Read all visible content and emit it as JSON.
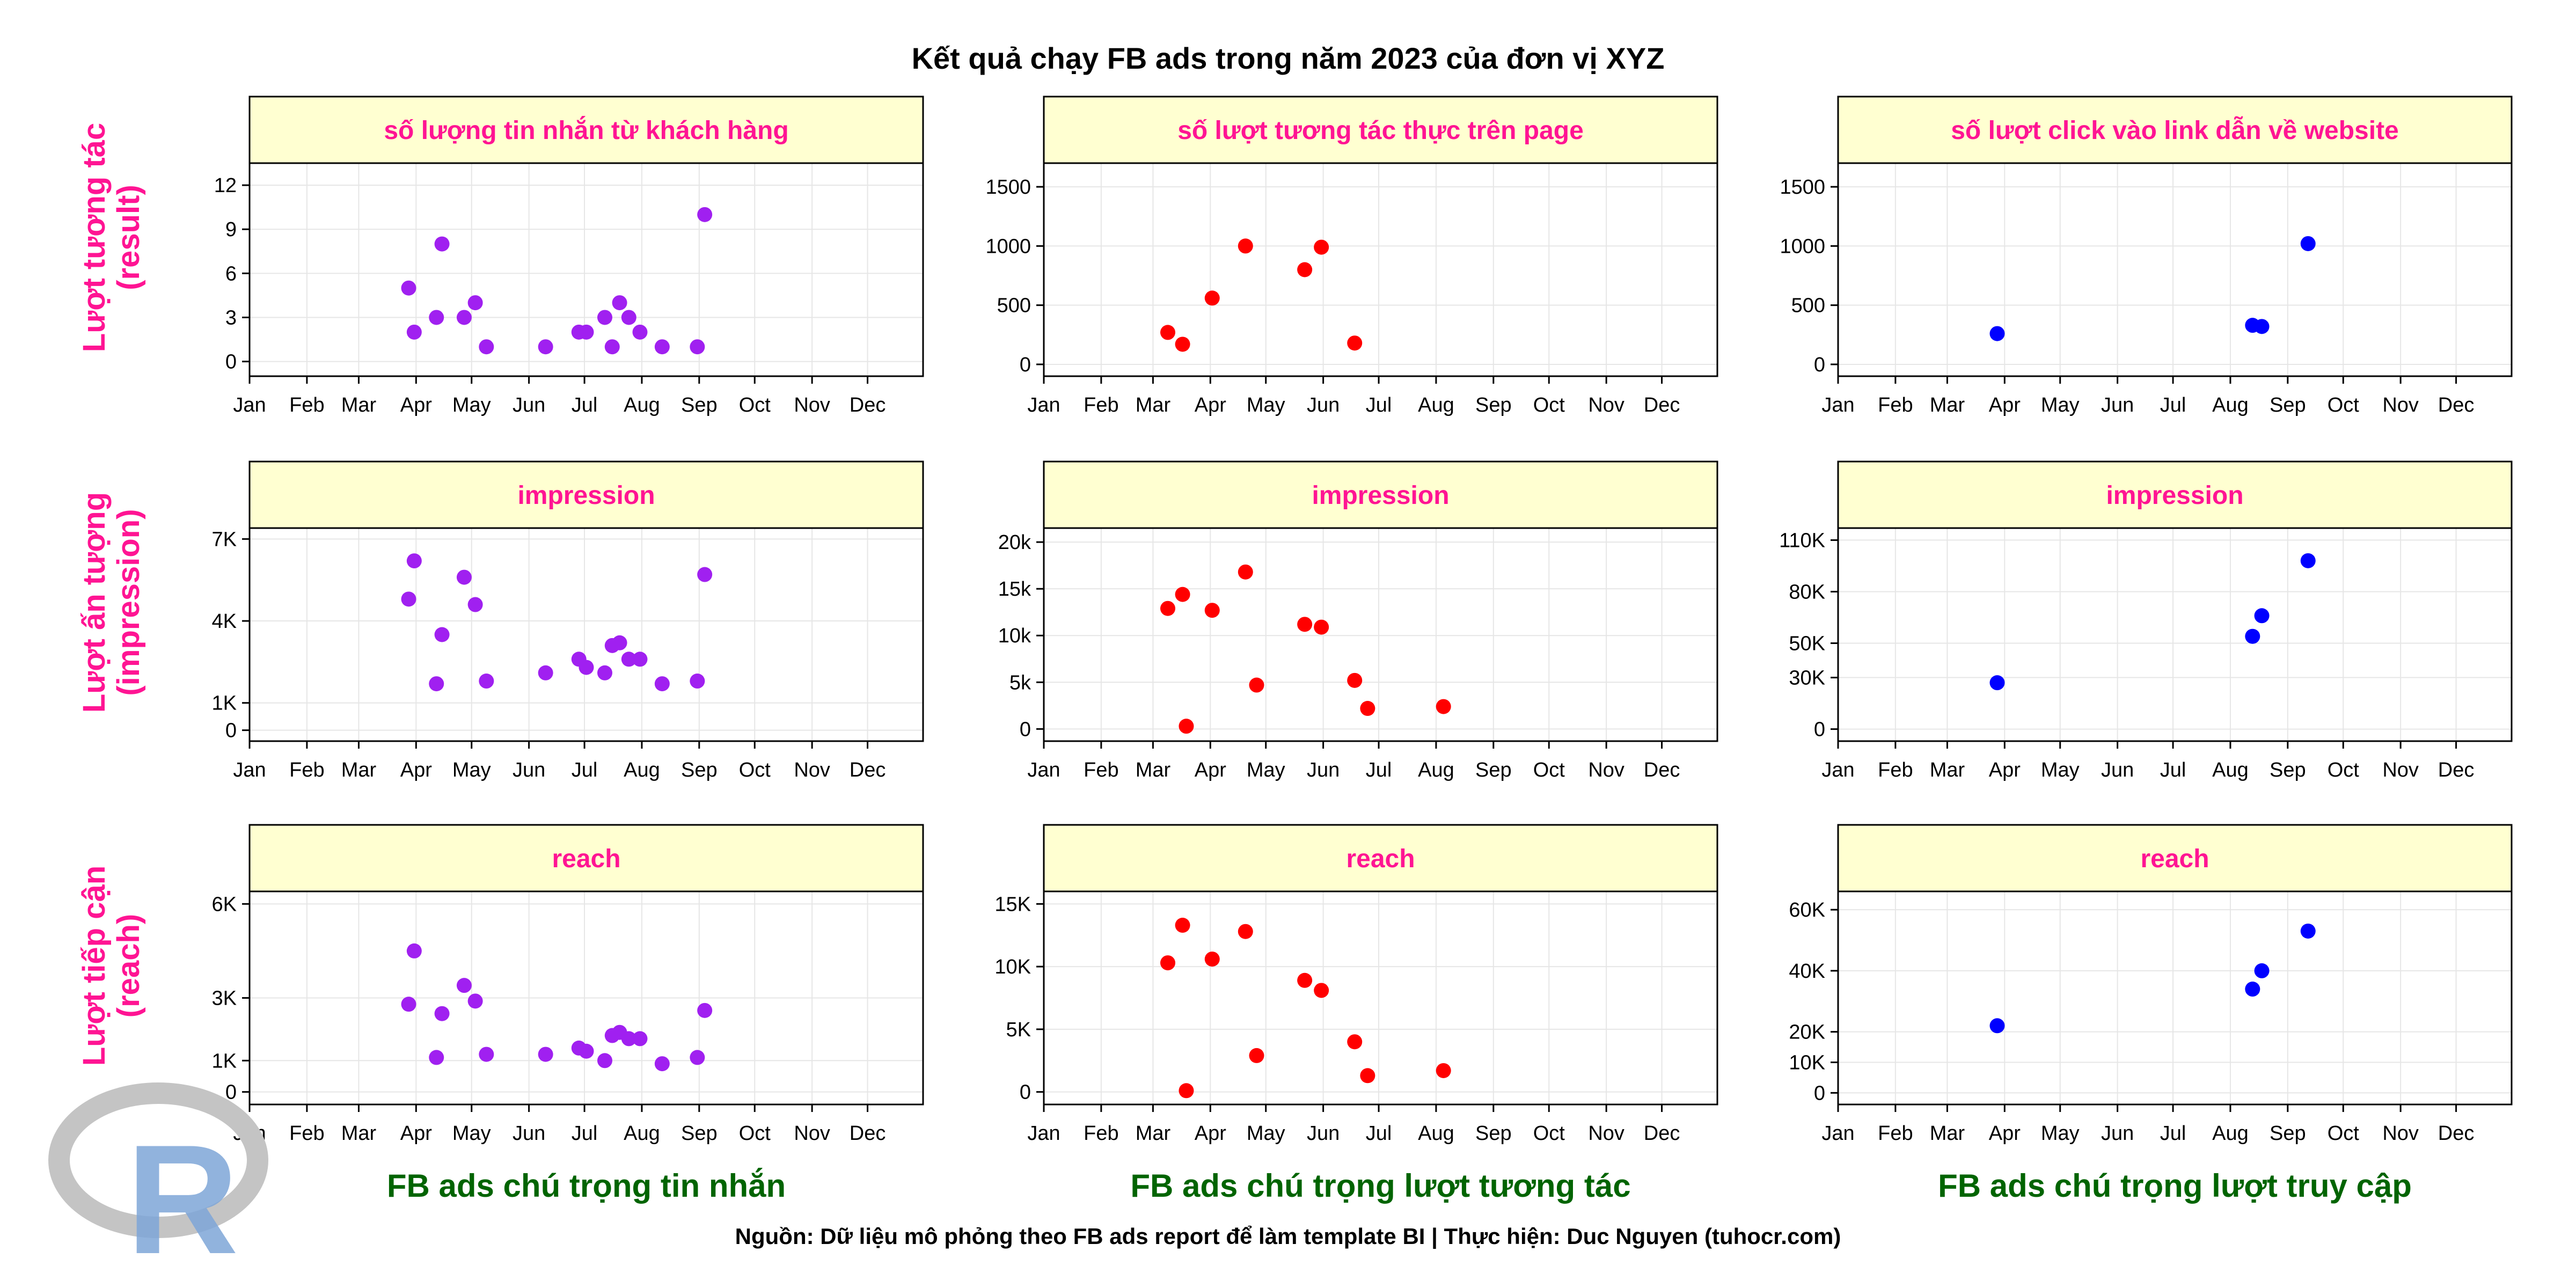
{
  "title": "Kết quả chạy FB ads trong năm 2023 của đơn vị XYZ",
  "caption": "Nguồn: Dữ liệu mô phỏng theo FB ads report để làm template BI | Thực hiện: Duc Nguyen (tuhocr.com)",
  "logo": "R",
  "colors": {
    "strip_bg": "#FFFFD1",
    "strip_text": "#FF1493",
    "row_label": "#FF1493",
    "col_label": "#006400",
    "grid": "#E6E6E6",
    "series": [
      "#A020F0",
      "#FF0000",
      "#0000FF"
    ]
  },
  "row_labels": [
    [
      "Lượt tương tác",
      "(result)"
    ],
    [
      "Lượt ấn tượng",
      "(impression)"
    ],
    [
      "Lượt tiếp cận",
      "(reach)"
    ]
  ],
  "column_labels": [
    "FB ads chú trọng tin nhắn",
    "FB ads chú trọng lượt tương tác",
    "FB ads chú trọng lượt truy cập"
  ],
  "chart_data": [
    {
      "type": "scatter",
      "title": "số lượng tin nhắn từ khách hàng",
      "x_ticks": [
        "Jan",
        "Feb",
        "Mar",
        "Apr",
        "May",
        "Jun",
        "Jul",
        "Aug",
        "Sep",
        "Oct",
        "Nov",
        "Dec"
      ],
      "xlim": [
        "2023-01-01",
        "2023-12-31"
      ],
      "ylim": [
        -1,
        13.5
      ],
      "y_ticks": [
        0,
        3,
        6,
        9,
        12
      ],
      "y_tick_labels": [
        "0",
        "3",
        "6",
        "9",
        "12"
      ],
      "grid": true,
      "points": [
        {
          "x": "2023-03-28",
          "y": 5
        },
        {
          "x": "2023-03-31",
          "y": 2
        },
        {
          "x": "2023-04-12",
          "y": 3
        },
        {
          "x": "2023-04-15",
          "y": 8
        },
        {
          "x": "2023-04-27",
          "y": 3
        },
        {
          "x": "2023-05-03",
          "y": 4
        },
        {
          "x": "2023-05-09",
          "y": 1
        },
        {
          "x": "2023-06-10",
          "y": 1
        },
        {
          "x": "2023-06-28",
          "y": 2
        },
        {
          "x": "2023-07-02",
          "y": 2
        },
        {
          "x": "2023-07-12",
          "y": 3
        },
        {
          "x": "2023-07-16",
          "y": 1
        },
        {
          "x": "2023-07-20",
          "y": 4
        },
        {
          "x": "2023-07-25",
          "y": 3
        },
        {
          "x": "2023-07-31",
          "y": 2
        },
        {
          "x": "2023-08-12",
          "y": 1
        },
        {
          "x": "2023-08-31",
          "y": 1
        },
        {
          "x": "2023-09-04",
          "y": 10
        }
      ]
    },
    {
      "type": "scatter",
      "title": "số lượt tương tác thực trên page",
      "x_ticks": [
        "Jan",
        "Feb",
        "Mar",
        "Apr",
        "May",
        "Jun",
        "Jul",
        "Aug",
        "Sep",
        "Oct",
        "Nov",
        "Dec"
      ],
      "xlim": [
        "2023-01-01",
        "2023-12-31"
      ],
      "ylim": [
        -100,
        1700
      ],
      "y_ticks": [
        0,
        500,
        1000,
        1500
      ],
      "y_tick_labels": [
        "0",
        "500",
        "1000",
        "1500"
      ],
      "grid": true,
      "points": [
        {
          "x": "2023-03-09",
          "y": 270
        },
        {
          "x": "2023-03-17",
          "y": 170
        },
        {
          "x": "2023-04-02",
          "y": 560
        },
        {
          "x": "2023-04-20",
          "y": 1000
        },
        {
          "x": "2023-05-22",
          "y": 800
        },
        {
          "x": "2023-05-31",
          "y": 990
        },
        {
          "x": "2023-06-18",
          "y": 180
        }
      ]
    },
    {
      "type": "scatter",
      "title": "số lượt click vào link dẫn về website",
      "x_ticks": [
        "Jan",
        "Feb",
        "Mar",
        "Apr",
        "May",
        "Jun",
        "Jul",
        "Aug",
        "Sep",
        "Oct",
        "Nov",
        "Dec"
      ],
      "xlim": [
        "2023-01-01",
        "2023-12-31"
      ],
      "ylim": [
        -100,
        1700
      ],
      "y_ticks": [
        0,
        500,
        1000,
        1500
      ],
      "y_tick_labels": [
        "0",
        "500",
        "1000",
        "1500"
      ],
      "grid": true,
      "points": [
        {
          "x": "2023-03-28",
          "y": 260
        },
        {
          "x": "2023-08-13",
          "y": 330
        },
        {
          "x": "2023-08-18",
          "y": 320
        },
        {
          "x": "2023-09-12",
          "y": 1020
        }
      ]
    },
    {
      "type": "scatter",
      "title": "impression",
      "x_ticks": [
        "Jan",
        "Feb",
        "Mar",
        "Apr",
        "May",
        "Jun",
        "Jul",
        "Aug",
        "Sep",
        "Oct",
        "Nov",
        "Dec"
      ],
      "xlim": [
        "2023-01-01",
        "2023-12-31"
      ],
      "ylim": [
        -400,
        7400
      ],
      "y_ticks": [
        0,
        1000,
        4000,
        7000
      ],
      "y_tick_labels": [
        "0",
        "1K",
        "4K",
        "7K"
      ],
      "grid": true,
      "points": [
        {
          "x": "2023-03-28",
          "y": 4800
        },
        {
          "x": "2023-03-31",
          "y": 6200
        },
        {
          "x": "2023-04-12",
          "y": 1700
        },
        {
          "x": "2023-04-15",
          "y": 3500
        },
        {
          "x": "2023-04-27",
          "y": 5600
        },
        {
          "x": "2023-05-03",
          "y": 4600
        },
        {
          "x": "2023-05-09",
          "y": 1800
        },
        {
          "x": "2023-06-10",
          "y": 2100
        },
        {
          "x": "2023-06-28",
          "y": 2600
        },
        {
          "x": "2023-07-02",
          "y": 2300
        },
        {
          "x": "2023-07-12",
          "y": 2100
        },
        {
          "x": "2023-07-16",
          "y": 3100
        },
        {
          "x": "2023-07-20",
          "y": 3200
        },
        {
          "x": "2023-07-25",
          "y": 2600
        },
        {
          "x": "2023-07-31",
          "y": 2600
        },
        {
          "x": "2023-08-12",
          "y": 1700
        },
        {
          "x": "2023-08-31",
          "y": 1800
        },
        {
          "x": "2023-09-04",
          "y": 5700
        }
      ]
    },
    {
      "type": "scatter",
      "title": "impression",
      "x_ticks": [
        "Jan",
        "Feb",
        "Mar",
        "Apr",
        "May",
        "Jun",
        "Jul",
        "Aug",
        "Sep",
        "Oct",
        "Nov",
        "Dec"
      ],
      "xlim": [
        "2023-01-01",
        "2023-12-31"
      ],
      "ylim": [
        -1300,
        21500
      ],
      "y_ticks": [
        0,
        5000,
        10000,
        15000,
        20000
      ],
      "y_tick_labels": [
        "0",
        "5k",
        "10k",
        "15k",
        "20k"
      ],
      "grid": true,
      "points": [
        {
          "x": "2023-03-09",
          "y": 12900
        },
        {
          "x": "2023-03-17",
          "y": 14400
        },
        {
          "x": "2023-03-19",
          "y": 300
        },
        {
          "x": "2023-04-02",
          "y": 12700
        },
        {
          "x": "2023-04-20",
          "y": 16800
        },
        {
          "x": "2023-04-26",
          "y": 4700
        },
        {
          "x": "2023-05-22",
          "y": 11200
        },
        {
          "x": "2023-05-31",
          "y": 10900
        },
        {
          "x": "2023-06-18",
          "y": 5200
        },
        {
          "x": "2023-06-25",
          "y": 2200
        },
        {
          "x": "2023-08-05",
          "y": 2400
        }
      ]
    },
    {
      "type": "scatter",
      "title": "impression",
      "x_ticks": [
        "Jan",
        "Feb",
        "Mar",
        "Apr",
        "May",
        "Jun",
        "Jul",
        "Aug",
        "Sep",
        "Oct",
        "Nov",
        "Dec"
      ],
      "xlim": [
        "2023-01-01",
        "2023-12-31"
      ],
      "ylim": [
        -7000,
        117000
      ],
      "y_ticks": [
        0,
        30000,
        50000,
        80000,
        110000
      ],
      "y_tick_labels": [
        "0",
        "30K",
        "50K",
        "80K",
        "110K"
      ],
      "grid": true,
      "points": [
        {
          "x": "2023-03-28",
          "y": 27000
        },
        {
          "x": "2023-08-13",
          "y": 54000
        },
        {
          "x": "2023-08-18",
          "y": 66000
        },
        {
          "x": "2023-09-12",
          "y": 98000
        }
      ]
    },
    {
      "type": "scatter",
      "title": "reach",
      "x_ticks": [
        "Jan",
        "Feb",
        "Mar",
        "Apr",
        "May",
        "Jun",
        "Jul",
        "Aug",
        "Sep",
        "Oct",
        "Nov",
        "Dec"
      ],
      "xlim": [
        "2023-01-01",
        "2023-12-31"
      ],
      "ylim": [
        -400,
        6400
      ],
      "y_ticks": [
        0,
        1000,
        3000,
        6000
      ],
      "y_tick_labels": [
        "0",
        "1K",
        "3K",
        "6K"
      ],
      "grid": true,
      "points": [
        {
          "x": "2023-03-28",
          "y": 2800
        },
        {
          "x": "2023-03-31",
          "y": 4500
        },
        {
          "x": "2023-04-12",
          "y": 1100
        },
        {
          "x": "2023-04-15",
          "y": 2500
        },
        {
          "x": "2023-04-27",
          "y": 3400
        },
        {
          "x": "2023-05-03",
          "y": 2900
        },
        {
          "x": "2023-05-09",
          "y": 1200
        },
        {
          "x": "2023-06-10",
          "y": 1200
        },
        {
          "x": "2023-06-28",
          "y": 1400
        },
        {
          "x": "2023-07-02",
          "y": 1300
        },
        {
          "x": "2023-07-12",
          "y": 1000
        },
        {
          "x": "2023-07-16",
          "y": 1800
        },
        {
          "x": "2023-07-20",
          "y": 1900
        },
        {
          "x": "2023-07-25",
          "y": 1700
        },
        {
          "x": "2023-07-31",
          "y": 1700
        },
        {
          "x": "2023-08-12",
          "y": 900
        },
        {
          "x": "2023-08-31",
          "y": 1100
        },
        {
          "x": "2023-09-04",
          "y": 2600
        }
      ]
    },
    {
      "type": "scatter",
      "title": "reach",
      "x_ticks": [
        "Jan",
        "Feb",
        "Mar",
        "Apr",
        "May",
        "Jun",
        "Jul",
        "Aug",
        "Sep",
        "Oct",
        "Nov",
        "Dec"
      ],
      "xlim": [
        "2023-01-01",
        "2023-12-31"
      ],
      "ylim": [
        -1000,
        16000
      ],
      "y_ticks": [
        0,
        5000,
        10000,
        15000
      ],
      "y_tick_labels": [
        "0",
        "5K",
        "10K",
        "15K"
      ],
      "grid": true,
      "points": [
        {
          "x": "2023-03-09",
          "y": 10300
        },
        {
          "x": "2023-03-17",
          "y": 13300
        },
        {
          "x": "2023-03-19",
          "y": 100
        },
        {
          "x": "2023-04-02",
          "y": 10600
        },
        {
          "x": "2023-04-20",
          "y": 12800
        },
        {
          "x": "2023-04-26",
          "y": 2900
        },
        {
          "x": "2023-05-22",
          "y": 8900
        },
        {
          "x": "2023-05-31",
          "y": 8100
        },
        {
          "x": "2023-06-18",
          "y": 4000
        },
        {
          "x": "2023-06-25",
          "y": 1300
        },
        {
          "x": "2023-08-05",
          "y": 1700
        }
      ]
    },
    {
      "type": "scatter",
      "title": "reach",
      "x_ticks": [
        "Jan",
        "Feb",
        "Mar",
        "Apr",
        "May",
        "Jun",
        "Jul",
        "Aug",
        "Sep",
        "Oct",
        "Nov",
        "Dec"
      ],
      "xlim": [
        "2023-01-01",
        "2023-12-31"
      ],
      "ylim": [
        -3800,
        66000
      ],
      "y_ticks": [
        0,
        10000,
        20000,
        40000,
        60000
      ],
      "y_tick_labels": [
        "0",
        "10K",
        "20K",
        "40K",
        "60K"
      ],
      "grid": true,
      "points": [
        {
          "x": "2023-03-28",
          "y": 22000
        },
        {
          "x": "2023-08-13",
          "y": 34000
        },
        {
          "x": "2023-08-18",
          "y": 40000
        },
        {
          "x": "2023-09-12",
          "y": 53000
        }
      ]
    }
  ]
}
